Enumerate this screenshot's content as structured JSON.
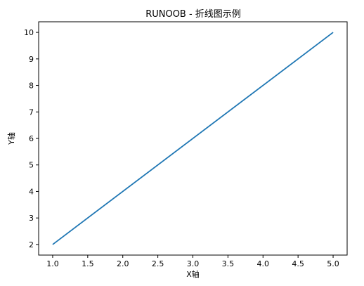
{
  "chart_data": {
    "type": "line",
    "title": "RUNOOB - 折线图示例",
    "xlabel": "X轴",
    "ylabel": "Y轴",
    "x": [
      1,
      5
    ],
    "series": [
      {
        "values": [
          2,
          10
        ],
        "color": "#1f77b4"
      }
    ],
    "xlim": [
      0.8,
      5.2
    ],
    "ylim": [
      1.6,
      10.4
    ],
    "xticks": [
      1.0,
      1.5,
      2.0,
      2.5,
      3.0,
      3.5,
      4.0,
      4.5,
      5.0
    ],
    "xtick_labels": [
      "1.0",
      "1.5",
      "2.0",
      "2.5",
      "3.0",
      "3.5",
      "4.0",
      "4.5",
      "5.0"
    ],
    "yticks": [
      2,
      3,
      4,
      5,
      6,
      7,
      8,
      9,
      10
    ],
    "ytick_labels": [
      "2",
      "3",
      "4",
      "5",
      "6",
      "7",
      "8",
      "9",
      "10"
    ],
    "grid": false,
    "legend": false
  }
}
